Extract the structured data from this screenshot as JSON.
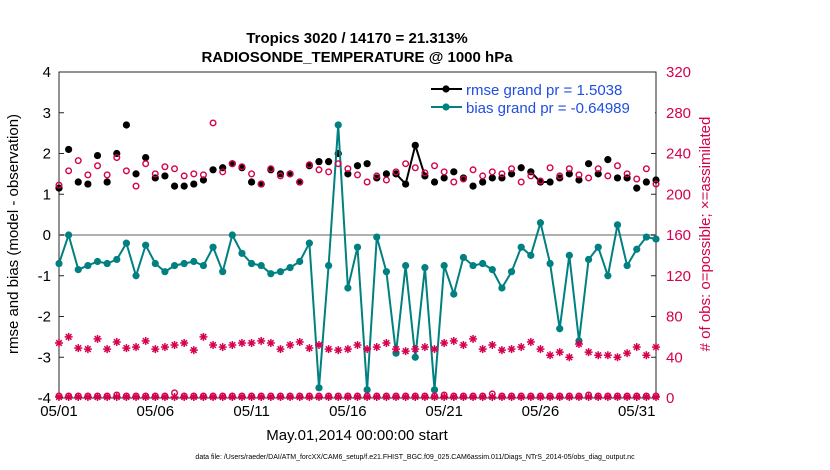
{
  "chart_data": {
    "type": "line",
    "title": "Tropics 3020 / 14170 = 21.313%",
    "subtitle": "RADIOSONDE_TEMPERATURE @ 1000 hPa",
    "xlabel": "May.01,2014 00:00:00 start",
    "ylabel": "rmse and bias (model - observation)",
    "ylabel_right": "# of obs: o=possible; ×=assimilated",
    "xlim": [
      1,
      32
    ],
    "ylim": [
      -4,
      4
    ],
    "ylim_right": [
      0,
      320
    ],
    "x_tick_labels": [
      "05/01",
      "05/06",
      "05/11",
      "05/16",
      "05/21",
      "05/26",
      "05/31"
    ],
    "x_tick_values": [
      1,
      6,
      11,
      16,
      21,
      26,
      31
    ],
    "y_tick_labels": [
      "-4",
      "-3",
      "-2",
      "-1",
      "0",
      "1",
      "2",
      "3",
      "4"
    ],
    "y_tick_values": [
      -4,
      -3,
      -2,
      -1,
      0,
      1,
      2,
      3,
      4
    ],
    "y_right_tick_labels": [
      "0",
      "40",
      "80",
      "120",
      "160",
      "200",
      "240",
      "280",
      "320"
    ],
    "y_right_tick_values": [
      0,
      40,
      80,
      120,
      160,
      200,
      240,
      280,
      320
    ],
    "legend": [
      "rmse grand pr = 1.5038",
      "bias grand pr = -0.64989"
    ],
    "footnote": "data file: /Users/raeder/DAI/ATM_forcXX/CAM6_setup/f.e21.FHIST_BGC.f09_025.CAM6assim.011/Diags_NTrS_2014-05/obs_diag_output.nc",
    "series": [
      {
        "name": "rmse",
        "color": "#000000",
        "marker": "filled-dot",
        "x": [
          1,
          1.5,
          2,
          2.5,
          3,
          3.5,
          4,
          4.5,
          5,
          5.5,
          6,
          6.5,
          7,
          7.5,
          8,
          8.5,
          9,
          9.5,
          10,
          10.5,
          11,
          11.5,
          12,
          12.5,
          13,
          13.5,
          14,
          14.5,
          15,
          15.5,
          16,
          16.5,
          17,
          17.5,
          18,
          18.5,
          19,
          19.5,
          20,
          20.5,
          21,
          21.5,
          22,
          22.5,
          23,
          23.5,
          24,
          24.5,
          25,
          25.5,
          26,
          26.5,
          27,
          27.5,
          28,
          28.5,
          29,
          29.5,
          30,
          30.5,
          31,
          31.5,
          32
        ],
        "values": [
          1.15,
          2.1,
          1.3,
          1.25,
          1.95,
          1.3,
          2.0,
          2.7,
          1.5,
          1.9,
          1.4,
          1.45,
          1.2,
          1.2,
          1.25,
          1.35,
          1.6,
          1.65,
          1.75,
          1.65,
          1.3,
          1.25,
          1.6,
          1.5,
          1.5,
          1.3,
          1.7,
          1.8,
          1.8,
          2.0,
          1.5,
          1.7,
          1.75,
          1.4,
          1.5,
          1.5,
          1.25,
          2.2,
          1.45,
          1.3,
          1.4,
          1.55,
          1.4,
          1.2,
          1.3,
          1.4,
          1.4,
          1.5,
          1.65,
          1.55,
          1.3,
          1.3,
          1.4,
          1.5,
          1.35,
          1.75,
          1.5,
          1.85,
          1.4,
          1.4,
          1.15,
          1.3,
          1.35
        ],
        "gaps_after": [
          36,
          50
        ]
      },
      {
        "name": "bias",
        "color": "#008080",
        "marker": "filled-dot",
        "x": [
          1,
          1.5,
          2,
          2.5,
          3,
          3.5,
          4,
          4.5,
          5,
          5.5,
          6,
          6.5,
          7,
          7.5,
          8,
          8.5,
          9,
          9.5,
          10,
          10.5,
          11,
          11.5,
          12,
          12.5,
          13,
          13.5,
          14,
          14.5,
          15,
          15.5,
          16,
          16.5,
          17,
          17.5,
          18,
          18.5,
          19,
          19.5,
          20,
          20.5,
          21,
          21.5,
          22,
          22.5,
          23,
          23.5,
          24,
          24.5,
          25,
          25.5,
          26,
          26.5,
          27,
          27.5,
          28,
          28.5,
          29,
          29.5,
          30,
          30.5,
          31,
          31.5,
          32
        ],
        "values": [
          -0.7,
          0.0,
          -0.85,
          -0.75,
          -0.65,
          -0.7,
          -0.6,
          -0.2,
          -1.0,
          -0.25,
          -0.7,
          -0.9,
          -0.75,
          -0.7,
          -0.65,
          -0.75,
          -0.3,
          -0.9,
          -0.0,
          -0.45,
          -0.7,
          -0.75,
          -0.95,
          -0.9,
          -0.8,
          -0.65,
          -0.2,
          -3.75,
          -0.75,
          2.7,
          -1.3,
          -0.3,
          -3.8,
          -0.05,
          -0.9,
          -2.9,
          -0.75,
          -3.0,
          -0.8,
          -3.8,
          -0.75,
          -1.45,
          -0.55,
          -0.75,
          -0.7,
          -0.85,
          -1.3,
          -0.9,
          -0.3,
          -0.5,
          0.3,
          -0.7,
          -2.3,
          -0.5,
          -2.6,
          -0.6,
          -0.3,
          -1.0,
          0.25,
          -0.75,
          -0.35,
          -0.05,
          -0.1
        ],
        "gaps_after": []
      },
      {
        "name": "obs possible",
        "color": "#d6004e",
        "marker": "open-circle",
        "axis": "right",
        "x": [
          1,
          1.5,
          2,
          2.5,
          3,
          3.5,
          4,
          4.5,
          5,
          5.5,
          6,
          6.5,
          7,
          7.5,
          8,
          8.5,
          9,
          9.5,
          10,
          10.5,
          11,
          11.5,
          12,
          12.5,
          13,
          13.5,
          14,
          14.5,
          15,
          15.5,
          16,
          16.5,
          17,
          17.5,
          18,
          18.5,
          19,
          19.5,
          20,
          20.5,
          21,
          21.5,
          22,
          22.5,
          23,
          23.5,
          24,
          24.5,
          25,
          25.5,
          26,
          26.5,
          27,
          27.5,
          28,
          28.5,
          29,
          29.5,
          30,
          30.5,
          31,
          31.5,
          32
        ],
        "values": [
          209,
          223,
          233,
          219,
          228,
          219,
          236,
          223,
          208,
          230,
          220,
          227,
          225,
          218,
          220,
          219,
          270,
          222,
          230,
          227,
          220,
          210,
          225,
          218,
          220,
          212,
          229,
          224,
          222,
          230,
          225,
          219,
          212,
          218,
          214,
          222,
          230,
          226,
          221,
          228,
          222,
          212,
          215,
          224,
          218,
          222,
          220,
          225,
          212,
          218,
          213,
          226,
          218,
          225,
          219,
          216,
          225,
          218,
          228,
          220,
          215,
          225,
          210
        ],
        "values_bottom": [
          2,
          2,
          2,
          2,
          2,
          2,
          3,
          2,
          2,
          2,
          2,
          2,
          5,
          2,
          2,
          2,
          2,
          2,
          2,
          2,
          2,
          2,
          2,
          2,
          2,
          2,
          2,
          2,
          2,
          2,
          2,
          2,
          2,
          2,
          2,
          2,
          2,
          2,
          2,
          2,
          3,
          2,
          2,
          2,
          2,
          4,
          2,
          2,
          2,
          2,
          2,
          2,
          2,
          2,
          2,
          3,
          2,
          2,
          2,
          2,
          2,
          2,
          2
        ]
      },
      {
        "name": "obs assimilated",
        "color": "#d6004e",
        "marker": "asterisk",
        "axis": "right",
        "x": [
          1,
          1.5,
          2,
          2.5,
          3,
          3.5,
          4,
          4.5,
          5,
          5.5,
          6,
          6.5,
          7,
          7.5,
          8,
          8.5,
          9,
          9.5,
          10,
          10.5,
          11,
          11.5,
          12,
          12.5,
          13,
          13.5,
          14,
          14.5,
          15,
          15.5,
          16,
          16.5,
          17,
          17.5,
          18,
          18.5,
          19,
          19.5,
          20,
          20.5,
          21,
          21.5,
          22,
          22.5,
          23,
          23.5,
          24,
          24.5,
          25,
          25.5,
          26,
          26.5,
          27,
          27.5,
          28,
          28.5,
          29,
          29.5,
          30,
          30.5,
          31,
          31.5,
          32
        ],
        "values": [
          54,
          60,
          49,
          48,
          58,
          48,
          55,
          49,
          50,
          56,
          48,
          50,
          52,
          54,
          47,
          60,
          52,
          50,
          52,
          54,
          54,
          56,
          54,
          48,
          52,
          55,
          49,
          52,
          48,
          47,
          48,
          52,
          48,
          50,
          54,
          48,
          46,
          48,
          50,
          48,
          54,
          56,
          52,
          58,
          48,
          52,
          47,
          48,
          50,
          55,
          48,
          42,
          45,
          40,
          53,
          45,
          42,
          42,
          40,
          44,
          50,
          42,
          50
        ],
        "values_bottom": [
          1,
          1,
          1,
          1,
          1,
          1,
          1,
          1,
          1,
          1,
          1,
          1,
          1,
          1,
          1,
          1,
          1,
          1,
          1,
          1,
          1,
          1,
          1,
          1,
          1,
          1,
          1,
          1,
          1,
          1,
          1,
          1,
          1,
          1,
          1,
          1,
          1,
          1,
          1,
          1,
          1,
          1,
          1,
          1,
          1,
          1,
          1,
          1,
          1,
          1,
          1,
          1,
          1,
          1,
          1,
          1,
          1,
          1,
          1,
          1,
          1,
          1,
          1
        ]
      }
    ]
  },
  "colors": {
    "rmse": "#000000",
    "bias": "#008080",
    "obs": "#d6004e",
    "legend_text": "#1f4ee0",
    "zero_line": "#b0b0b0"
  }
}
